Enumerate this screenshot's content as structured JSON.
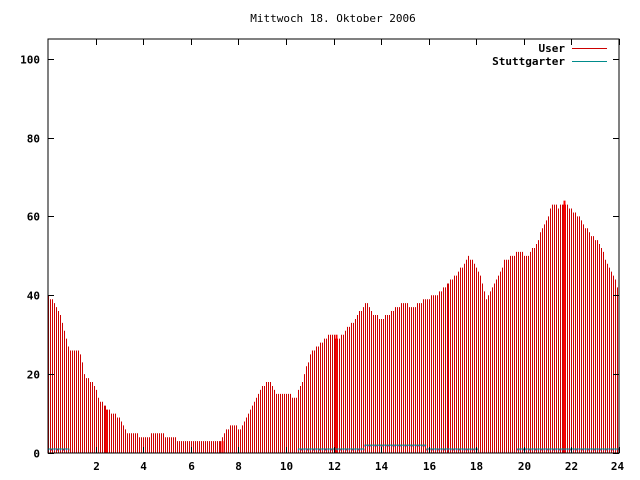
{
  "chart_data": {
    "type": "bar",
    "title": "Mittwoch 18. Oktober 2006",
    "xlabel": "",
    "ylabel": "",
    "xlim": [
      0,
      24
    ],
    "ylim": [
      0,
      105
    ],
    "x_ticks": [
      2,
      4,
      6,
      8,
      10,
      12,
      14,
      16,
      18,
      20,
      22,
      24
    ],
    "y_ticks": [
      0,
      20,
      40,
      60,
      80,
      100
    ],
    "grid": false,
    "legend_position": "top-right",
    "interval_minutes": 5,
    "series": [
      {
        "name": "User",
        "color": "#cc0000",
        "keypoints": [
          [
            0.0,
            40
          ],
          [
            0.25,
            38
          ],
          [
            0.5,
            35
          ],
          [
            0.75,
            29
          ],
          [
            0.9,
            26
          ],
          [
            1.3,
            26
          ],
          [
            1.5,
            20
          ],
          [
            1.8,
            18
          ],
          [
            2.2,
            13
          ],
          [
            2.5,
            11
          ],
          [
            2.8,
            10
          ],
          [
            3.0,
            9
          ],
          [
            3.3,
            5
          ],
          [
            3.6,
            5
          ],
          [
            4.0,
            4
          ],
          [
            4.6,
            5
          ],
          [
            5.2,
            4
          ],
          [
            5.5,
            3
          ],
          [
            6.5,
            3
          ],
          [
            7.2,
            3
          ],
          [
            7.5,
            6
          ],
          [
            7.8,
            7
          ],
          [
            8.1,
            6
          ],
          [
            8.5,
            11
          ],
          [
            9.0,
            17
          ],
          [
            9.3,
            18
          ],
          [
            9.6,
            15
          ],
          [
            10.0,
            15
          ],
          [
            10.4,
            14
          ],
          [
            10.7,
            19
          ],
          [
            11.0,
            25
          ],
          [
            11.3,
            27
          ],
          [
            11.6,
            29
          ],
          [
            11.9,
            30
          ],
          [
            12.2,
            29
          ],
          [
            12.5,
            31
          ],
          [
            12.8,
            33
          ],
          [
            13.1,
            36
          ],
          [
            13.4,
            38
          ],
          [
            13.7,
            35
          ],
          [
            14.0,
            34
          ],
          [
            14.3,
            35
          ],
          [
            14.6,
            37
          ],
          [
            15.0,
            38
          ],
          [
            15.3,
            37
          ],
          [
            15.6,
            38
          ],
          [
            15.9,
            39
          ],
          [
            16.2,
            40
          ],
          [
            16.5,
            41
          ],
          [
            16.8,
            43
          ],
          [
            17.1,
            45
          ],
          [
            17.4,
            47
          ],
          [
            17.7,
            50
          ],
          [
            18.0,
            47
          ],
          [
            18.2,
            44
          ],
          [
            18.4,
            39
          ],
          [
            18.6,
            41
          ],
          [
            18.9,
            45
          ],
          [
            19.2,
            49
          ],
          [
            19.5,
            50
          ],
          [
            19.8,
            51
          ],
          [
            20.1,
            50
          ],
          [
            20.4,
            52
          ],
          [
            20.7,
            56
          ],
          [
            21.0,
            60
          ],
          [
            21.2,
            64
          ],
          [
            21.4,
            62
          ],
          [
            21.6,
            63
          ],
          [
            21.8,
            63
          ],
          [
            22.0,
            62
          ],
          [
            22.3,
            60
          ],
          [
            22.6,
            57
          ],
          [
            22.9,
            55
          ],
          [
            23.2,
            53
          ],
          [
            23.5,
            48
          ],
          [
            23.8,
            44
          ],
          [
            24.0,
            41
          ]
        ],
        "spikes": [
          [
            2.45,
            11
          ],
          [
            7.3,
            3
          ],
          [
            12.1,
            30
          ],
          [
            21.7,
            64
          ]
        ]
      },
      {
        "name": "Stuttgarter",
        "color": "#008b8b",
        "segments": [
          {
            "start": 0.0,
            "end": 0.9,
            "value": 1
          },
          {
            "start": 10.5,
            "end": 13.3,
            "value": 1
          },
          {
            "start": 13.3,
            "end": 15.9,
            "value": 2
          },
          {
            "start": 15.9,
            "end": 17.5,
            "value": 1
          },
          {
            "start": 17.5,
            "end": 18.1,
            "value": 1
          },
          {
            "start": 19.7,
            "end": 21.7,
            "value": 1
          },
          {
            "start": 21.7,
            "end": 24.0,
            "value": 1
          }
        ]
      }
    ]
  }
}
